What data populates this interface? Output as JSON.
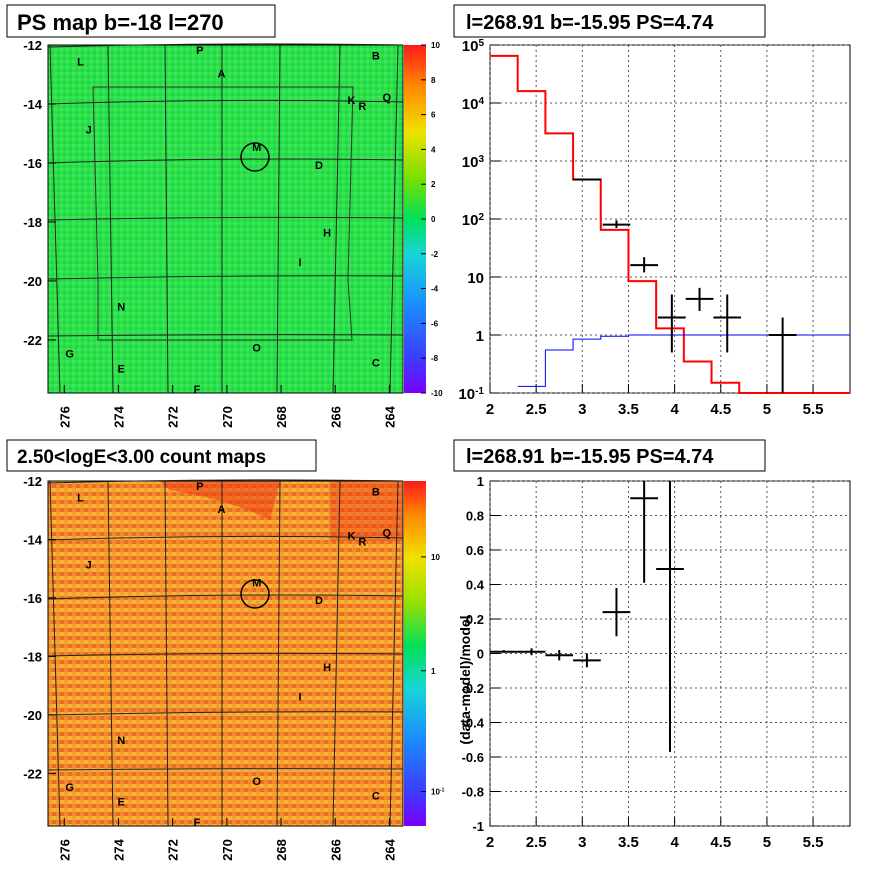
{
  "panels": {
    "tl_title": "PS map b=-18 l=270",
    "tr_title": "l=268.91 b=-15.95 PS=4.74",
    "bl_title": "2.50<logE<3.00 count maps",
    "br_title": "l=268.91 b=-15.95 PS=4.74"
  },
  "colors": {
    "ps_map_fill": "#2ee04a",
    "count_map_fill": "#f08a2a",
    "data_color": "#000000",
    "model_color": "#ff0000",
    "bg_color": "#0000ff"
  },
  "chart_data": [
    {
      "type": "heatmap",
      "title": "PS map b=-18 l=270",
      "x_ticks": [
        "276",
        "274",
        "272",
        "270",
        "268",
        "266",
        "264"
      ],
      "y_ticks": [
        "-12",
        "-14",
        "-16",
        "-18",
        "-20",
        "-22"
      ],
      "xlim": [
        276.6,
        263.5
      ],
      "ylim": [
        -23.8,
        -12
      ],
      "colorbar": {
        "scale": "linear",
        "min": -10,
        "max": 10,
        "ticks": [
          "10",
          "8",
          "6",
          "4",
          "2",
          "0",
          "-2",
          "-4",
          "-6",
          "-8",
          "-10"
        ]
      },
      "sources": [
        {
          "label": "L",
          "x": 275.4,
          "y": -12.7
        },
        {
          "label": "P",
          "x": 271.0,
          "y": -12.3
        },
        {
          "label": "B",
          "x": 264.5,
          "y": -12.5
        },
        {
          "label": "A",
          "x": 270.2,
          "y": -13.1
        },
        {
          "label": "K",
          "x": 265.4,
          "y": -14.0
        },
        {
          "label": "R",
          "x": 265.0,
          "y": -14.2
        },
        {
          "label": "Q",
          "x": 264.1,
          "y": -13.9
        },
        {
          "label": "J",
          "x": 275.1,
          "y": -15.0
        },
        {
          "label": "M",
          "x": 268.9,
          "y": -15.6
        },
        {
          "label": "D",
          "x": 266.6,
          "y": -16.2
        },
        {
          "label": "H",
          "x": 266.3,
          "y": -18.5
        },
        {
          "label": "I",
          "x": 267.3,
          "y": -19.5
        },
        {
          "label": "N",
          "x": 273.9,
          "y": -21.0
        },
        {
          "label": "O",
          "x": 268.9,
          "y": -22.4
        },
        {
          "label": "G",
          "x": 275.8,
          "y": -22.6
        },
        {
          "label": "E",
          "x": 273.9,
          "y": -23.1
        },
        {
          "label": "C",
          "x": 264.5,
          "y": -22.9
        },
        {
          "label": "F",
          "x": 271.1,
          "y": -23.8
        }
      ]
    },
    {
      "type": "line",
      "title": "l=268.91 b=-15.95 PS=4.74",
      "xlim": [
        2,
        5.9
      ],
      "ylim": [
        0.1,
        100000
      ],
      "yscale": "log",
      "x_ticks": [
        "2",
        "2.5",
        "3",
        "3.5",
        "4",
        "4.5",
        "5",
        "5.5"
      ],
      "y_ticks": [
        "10^5",
        "10^4",
        "10^3",
        "10^2",
        "10",
        "1",
        "10^-1"
      ],
      "grid": true,
      "series": [
        {
          "kind": "step",
          "color": "#ff0000",
          "edges": [
            2,
            2.3,
            2.6,
            2.9,
            3.2,
            3.5,
            3.8,
            4.1,
            4.4,
            4.7,
            5.0,
            5.9
          ],
          "values": [
            65000,
            16000,
            3000,
            480,
            65,
            8.5,
            1.3,
            0.35,
            0.15,
            0.1,
            0.1
          ]
        },
        {
          "kind": "step",
          "color": "#0000ff",
          "edges": [
            2.3,
            2.6,
            2.9,
            3.2,
            3.5,
            5.9
          ],
          "values": [
            0.13,
            0.55,
            0.85,
            0.95,
            1.0
          ]
        },
        {
          "kind": "points",
          "color": "#000000",
          "x": [
            3.05,
            3.37,
            3.67,
            3.97,
            4.27,
            4.57,
            5.17
          ],
          "y": [
            480,
            80,
            16,
            2,
            4.2,
            2,
            1
          ],
          "xerr": [
            0.15,
            0.15,
            0.15,
            0.15,
            0.15,
            0.15,
            0.15
          ],
          "ylo": [
            480,
            70,
            12,
            0.5,
            2.6,
            0.5,
            0.1
          ],
          "yhi": [
            480,
            95,
            22,
            5,
            6.5,
            5,
            2
          ]
        }
      ]
    },
    {
      "type": "heatmap",
      "title": "2.50<logE<3.00 count maps",
      "x_ticks": [
        "276",
        "274",
        "272",
        "270",
        "268",
        "266",
        "264"
      ],
      "y_ticks": [
        "-12",
        "-14",
        "-16",
        "-18",
        "-20",
        "-22"
      ],
      "xlim": [
        276.6,
        263.5
      ],
      "ylim": [
        -23.8,
        -12
      ],
      "colorbar": {
        "scale": "log",
        "ticks": [
          "10",
          "1",
          "10^-1"
        ]
      }
    },
    {
      "type": "scatter",
      "title": "l=268.91 b=-15.95 PS=4.74",
      "ylabel": "(data-model)/model",
      "xlim": [
        2,
        5.9
      ],
      "ylim": [
        -1,
        1
      ],
      "x_ticks": [
        "2",
        "2.5",
        "3",
        "3.5",
        "4",
        "4.5",
        "5",
        "5.5"
      ],
      "y_ticks": [
        "1",
        "0.8",
        "0.6",
        "0.4",
        "0.2",
        "0",
        "-0.2",
        "-0.4",
        "-0.6",
        "-0.8",
        "-1"
      ],
      "grid": true,
      "points": [
        {
          "x": 2.15,
          "y": 0.01,
          "xerr": 0.15,
          "ylo": 0.005,
          "yhi": 0.02
        },
        {
          "x": 2.45,
          "y": 0.01,
          "xerr": 0.15,
          "ylo": -0.01,
          "yhi": 0.03
        },
        {
          "x": 2.75,
          "y": -0.01,
          "xerr": 0.15,
          "ylo": -0.04,
          "yhi": 0.02
        },
        {
          "x": 3.05,
          "y": -0.04,
          "xerr": 0.15,
          "ylo": -0.08,
          "yhi": 0.0
        },
        {
          "x": 3.37,
          "y": 0.24,
          "xerr": 0.15,
          "ylo": 0.1,
          "yhi": 0.38
        },
        {
          "x": 3.67,
          "y": 0.9,
          "xerr": 0.15,
          "ylo": 0.41,
          "yhi": 1.0
        },
        {
          "x": 3.95,
          "y": 0.49,
          "xerr": 0.15,
          "ylo": -0.57,
          "yhi": 1.0
        }
      ]
    }
  ]
}
